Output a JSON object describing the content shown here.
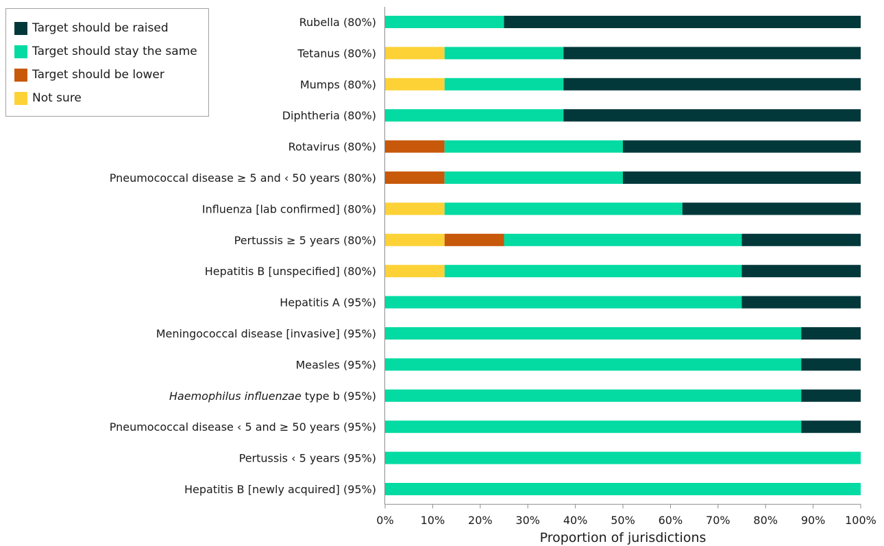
{
  "chart_data": {
    "type": "bar",
    "orientation": "horizontal",
    "stacked": true,
    "xlabel": "Proportion of jurisdictions",
    "ylabel": "",
    "xlim": [
      0,
      100
    ],
    "xticks": [
      "0%",
      "10%",
      "20%",
      "30%",
      "40%",
      "50%",
      "60%",
      "70%",
      "80%",
      "90%",
      "100%"
    ],
    "legend_position": "top-left",
    "categories": [
      {
        "label": "Rubella (80%)"
      },
      {
        "label": "Tetanus (80%)"
      },
      {
        "label": "Mumps (80%)"
      },
      {
        "label": "Diphtheria (80%)"
      },
      {
        "label": "Rotavirus (80%)"
      },
      {
        "label": "Pneumococcal disease ≥ 5 and ‹ 50 years (80%)"
      },
      {
        "label": "Influenza [lab confirmed] (80%)"
      },
      {
        "label": "Pertussis ≥ 5 years (80%)"
      },
      {
        "label": "Hepatitis B [unspecified] (80%)"
      },
      {
        "label": "Hepatitis A (95%)"
      },
      {
        "label": "Meningococcal disease [invasive] (95%)"
      },
      {
        "label": "Measles (95%)"
      },
      {
        "label": " type b (95%)",
        "italic_prefix": "Haemophilus influenzae"
      },
      {
        "label": "Pneumococcal disease ‹ 5 and ≥ 50 years (95%)"
      },
      {
        "label": "Pertussis ‹ 5 years (95%)"
      },
      {
        "label": "Hepatitis B [newly acquired] (95%)"
      }
    ],
    "series": [
      {
        "name": "Not sure",
        "color": "#fdd237",
        "values": [
          0,
          12.5,
          12.5,
          0,
          0,
          0,
          12.5,
          12.5,
          12.5,
          0,
          0,
          0,
          0,
          0,
          0,
          0
        ]
      },
      {
        "name": "Target should be lower",
        "color": "#c8580a",
        "values": [
          0,
          0,
          0,
          0,
          12.5,
          12.5,
          0,
          12.5,
          0,
          0,
          0,
          0,
          0,
          0,
          0,
          0
        ]
      },
      {
        "name": "Target should stay the same",
        "color": "#03dba3",
        "values": [
          25,
          25,
          25,
          37.5,
          37.5,
          37.5,
          50,
          50,
          62.5,
          75,
          87.5,
          87.5,
          87.5,
          87.5,
          100,
          100
        ]
      },
      {
        "name": "Target should be raised",
        "color": "#03383b",
        "values": [
          75,
          62.5,
          62.5,
          62.5,
          50,
          50,
          37.5,
          25,
          25,
          25,
          12.5,
          12.5,
          12.5,
          12.5,
          0,
          0
        ]
      }
    ],
    "legend_order": [
      "Target should be raised",
      "Target should stay the same",
      "Target should be lower",
      "Not sure"
    ]
  }
}
